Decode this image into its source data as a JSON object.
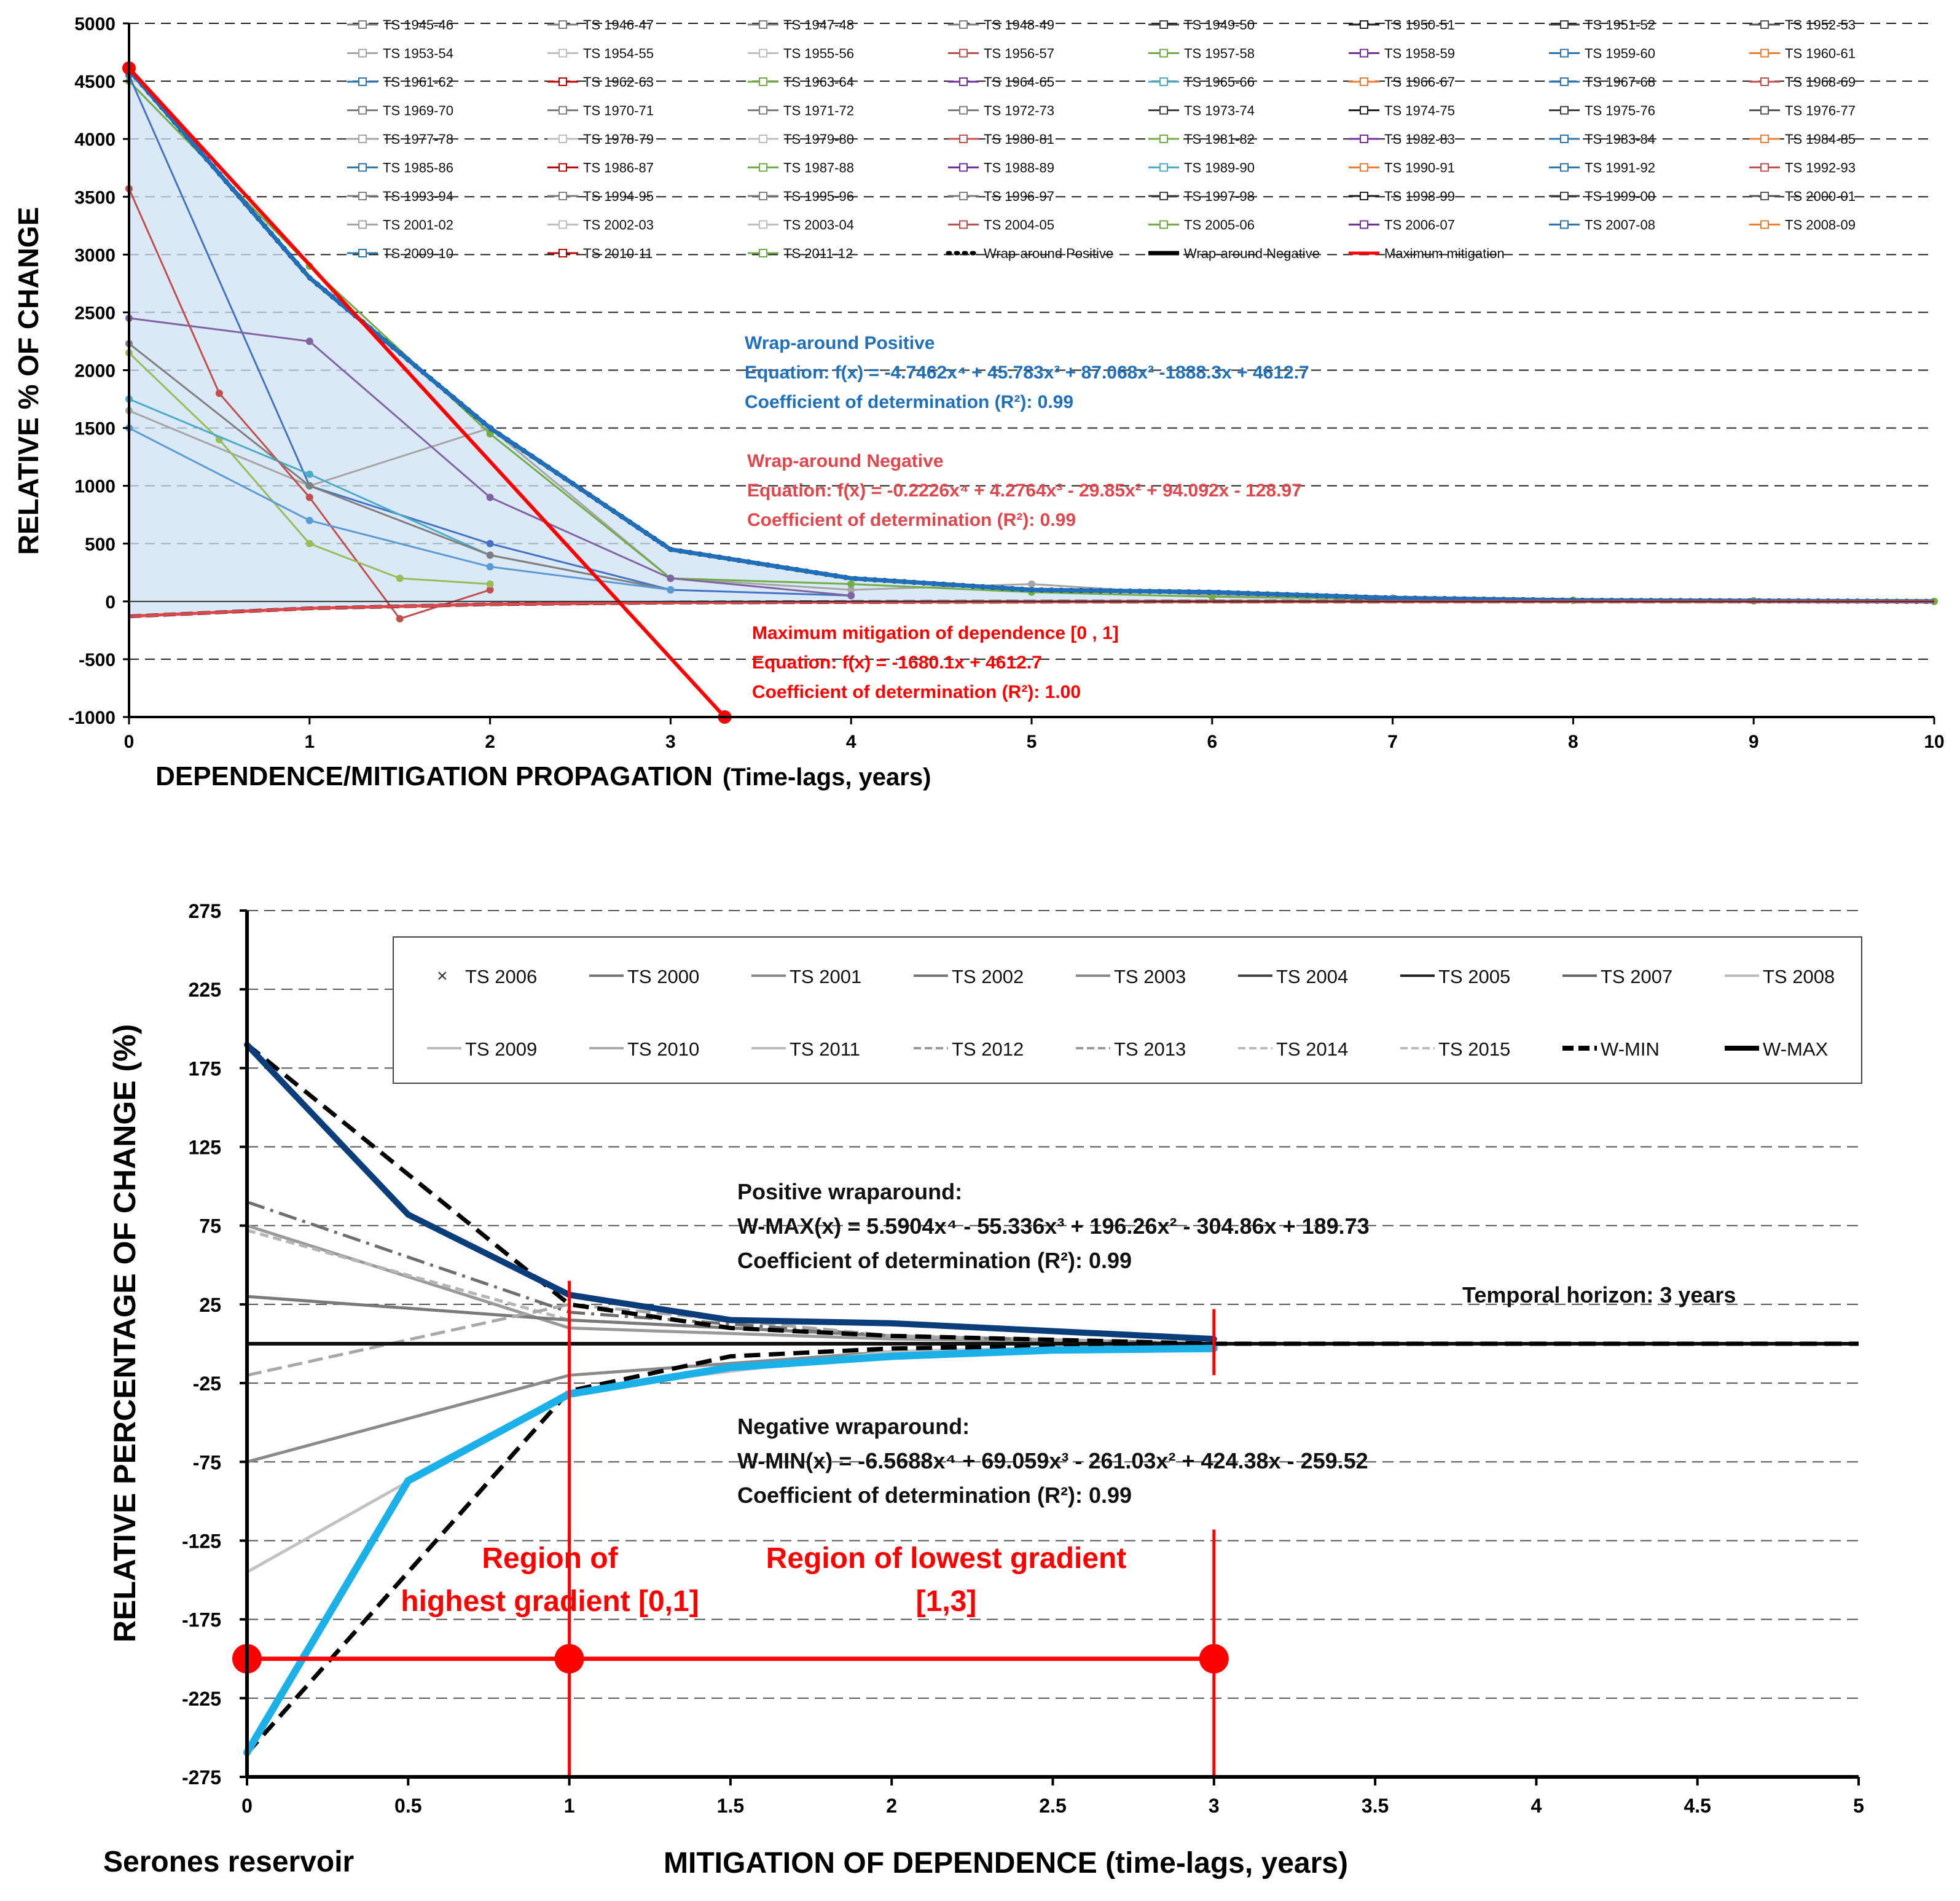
{
  "colors": {
    "wrap_pos_top": "#1f6fba",
    "wrap_neg_top": "#e0474c",
    "mitigation": "#ff0000",
    "fill_area": "#cfe0f1",
    "w_max_curve": "#0b3d7a",
    "w_min_curve": "#1cb0e8",
    "annot_red": "#ff0000",
    "gray_dark": "#555555",
    "gray_mid": "#8a8a8a",
    "gray_light": "#b8b8b8"
  },
  "top_chart": {
    "legend": [
      "TS 1945-46",
      "TS 1946-47",
      "TS 1947-48",
      "TS 1948-49",
      "TS 1949-50",
      "TS 1950-51",
      "TS 1951-52",
      "TS 1952-53",
      "TS 1953-54",
      "TS 1954-55",
      "TS 1955-56",
      "TS 1956-57",
      "TS 1957-58",
      "TS 1958-59",
      "TS 1959-60",
      "TS 1960-61",
      "TS 1961-62",
      "TS 1962-63",
      "TS 1963-64",
      "TS 1964-65",
      "TS 1965-66",
      "TS 1966-67",
      "TS 1967-68",
      "TS 1968-69",
      "TS 1969-70",
      "TS 1970-71",
      "TS 1971-72",
      "TS 1972-73",
      "TS 1973-74",
      "TS 1974-75",
      "TS 1975-76",
      "TS 1976-77",
      "TS 1977-78",
      "TS 1978-79",
      "TS 1979-80",
      "TS 1980-81",
      "TS 1981-82",
      "TS 1982-83",
      "TS 1983-84",
      "TS 1984-85",
      "TS 1985-86",
      "TS 1986-87",
      "TS 1987-88",
      "TS 1988-89",
      "TS 1989-90",
      "TS 1990-91",
      "TS 1991-92",
      "TS 1992-93",
      "TS 1993-94",
      "TS 1994-95",
      "TS 1995-96",
      "TS 1996-97",
      "TS 1997-98",
      "TS 1998-99",
      "TS 1999-00",
      "TS 2000-01",
      "TS 2001-02",
      "TS 2002-03",
      "TS 2003-04",
      "TS 2004-05",
      "TS 2005-06",
      "TS 2006-07",
      "TS 2007-08",
      "TS 2008-09",
      "TS 2009-10",
      "TS 2010-11",
      "TS 2011-12",
      "Wrap-around Positive",
      "Wrap-around Negative",
      "Maximum mitigation"
    ],
    "annotations": {
      "pos_title": "Wrap-around Positive",
      "pos_eq": "Equation: f(x) = -4.7462x⁴ +  45.783x³ + 87.068x² -1888.3x + 4612.7",
      "pos_r2": "Coefficient of determination (R²): 0.99",
      "neg_title": "Wrap-around Negative",
      "neg_eq": "Equation: f(x) = -0.2226x⁴ + 4.2764x³ - 29.85x² + 94.092x - 128.97",
      "neg_r2": "Coefficient of determination (R²): 0.99",
      "mit_title": "Maximum mitigation of dependence [0 , 1]",
      "mit_eq": "Equation: f(x) = -1680.1x + 4612.7",
      "mit_r2": "Coefficient of determination (R²): 1.00"
    }
  },
  "bottom_chart": {
    "legend": [
      "TS 2006",
      "TS 2000",
      "TS 2001",
      "TS 2002",
      "TS 2003",
      "TS 2004",
      "TS 2005",
      "TS 2007",
      "TS 2008",
      "TS 2009",
      "TS 2010",
      "TS 2011",
      "TS 2012",
      "TS 2013",
      "TS 2014",
      "TS 2015",
      "W-MIN",
      "W-MAX"
    ],
    "annotations": {
      "pos_title": "Positive wraparound:",
      "pos_eq": "W-MAX(x) = 5.5904x⁴ - 55.336x³ + 196.26x² - 304.86x + 189.73",
      "pos_r2": "Coefficient of determination (R²): 0.99",
      "neg_title": "Negative wraparound:",
      "neg_eq": "W-MIN(x) = -6.5688x⁴ + 69.059x³ - 261.03x² + 424.38x - 259.52",
      "neg_r2": "Coefficient of determination (R²): 0.99",
      "horizon": "Temporal horizon: 3 years",
      "region1_line1": "Region of",
      "region1_line2": "highest gradient [0,1]",
      "region2_line1": "Region of lowest gradient",
      "region2_line2": "[1,3]",
      "reservoir": "Serones reservoir"
    }
  },
  "chart_data": [
    {
      "type": "line",
      "title": "",
      "xlabel": "DEPENDENCE/MITIGATION PROPAGATION",
      "xlabel_suffix": "(Time-lags, years)",
      "ylabel": "RELATIVE % OF CHANGE",
      "xlim": [
        0,
        10
      ],
      "ylim": [
        -1000,
        5000
      ],
      "xticks": [
        "0",
        "1",
        "2",
        "3",
        "4",
        "5",
        "6",
        "7",
        "8",
        "9",
        "10"
      ],
      "yticks": [
        "5000",
        "4500",
        "4000",
        "3500",
        "3000",
        "2500",
        "2000",
        "1500",
        "1000",
        "500",
        "0",
        "-500",
        "-1000"
      ],
      "series": [
        {
          "name": "Wrap-around Positive",
          "x": [
            0,
            1,
            2,
            3,
            4,
            5,
            6,
            7,
            8,
            9,
            10
          ],
          "values": [
            4600,
            2800,
            1500,
            450,
            200,
            100,
            80,
            30,
            10,
            5,
            0
          ]
        },
        {
          "name": "Wrap-around Negative",
          "x": [
            0,
            1,
            2,
            3,
            4,
            5,
            6,
            7,
            8,
            9,
            10
          ],
          "values": [
            -129,
            -60,
            -25,
            -10,
            -5,
            -2,
            -1,
            0,
            0,
            0,
            0
          ]
        },
        {
          "name": "Maximum mitigation",
          "x": [
            0,
            3.3
          ],
          "values": [
            4612.7,
            -1000
          ]
        },
        {
          "name": "TS 1945-46",
          "x": [
            0,
            1,
            2,
            3,
            4,
            5,
            6,
            7,
            8,
            9,
            10
          ],
          "values": [
            1650,
            1000,
            1500,
            200,
            100,
            150,
            50,
            30,
            10,
            5,
            0
          ]
        },
        {
          "name": "TS 1946-47",
          "x": [
            0,
            1,
            2,
            3,
            4,
            5,
            6,
            7,
            8,
            9,
            10
          ],
          "values": [
            4500,
            2900,
            1450,
            200,
            150,
            80,
            40,
            20,
            10,
            5,
            0
          ]
        },
        {
          "name": "TS 1947-48",
          "x": [
            0,
            1,
            2,
            3,
            4
          ],
          "values": [
            4550,
            1000,
            500,
            100,
            50
          ]
        },
        {
          "name": "TS 1956-57",
          "x": [
            0,
            1,
            2,
            3,
            4
          ],
          "values": [
            2450,
            2250,
            900,
            200,
            50
          ]
        },
        {
          "name": "TS 1975-76",
          "x": [
            0,
            0.5,
            1,
            1.5,
            2
          ],
          "values": [
            3570,
            1800,
            900,
            -150,
            100
          ]
        },
        {
          "name": "TS 1966-67",
          "x": [
            0,
            0.5,
            1,
            1.5,
            2
          ],
          "values": [
            2150,
            1400,
            500,
            200,
            150
          ]
        },
        {
          "name": "TS 1964-65",
          "x": [
            0,
            1,
            2,
            3
          ],
          "values": [
            1750,
            1100,
            400,
            100
          ]
        },
        {
          "name": "TS 1969-70",
          "x": [
            0,
            1,
            2,
            3
          ],
          "values": [
            2230,
            1000,
            400,
            100
          ]
        },
        {
          "name": "TS 1959-60",
          "x": [
            0,
            1,
            2,
            3
          ],
          "values": [
            1500,
            700,
            300,
            100
          ]
        }
      ]
    },
    {
      "type": "line",
      "title": "",
      "xlabel": "MITIGATION OF DEPENDENCE (time-lags, years)",
      "ylabel": "RELATIVE PERCENTAGE OF CHANGE (%)",
      "xlim": [
        0,
        5
      ],
      "ylim": [
        -275,
        275
      ],
      "xticks": [
        "0",
        "0.5",
        "1",
        "1.5",
        "2",
        "2.5",
        "3",
        "3.5",
        "4",
        "4.5",
        "5"
      ],
      "yticks": [
        "275",
        "225",
        "175",
        "125",
        "75",
        "25",
        "-25",
        "-75",
        "-125",
        "-175",
        "-225",
        "-275"
      ],
      "series": [
        {
          "name": "W-MAX (fit)",
          "x": [
            0,
            0.5,
            1,
            1.5,
            2,
            2.5,
            3
          ],
          "values": [
            189.73,
            82,
            31,
            15,
            13,
            8,
            3
          ]
        },
        {
          "name": "W-MIN (fit)",
          "x": [
            0,
            0.5,
            1,
            1.5,
            2,
            2.5,
            3
          ],
          "values": [
            -259.52,
            -87,
            -32,
            -15,
            -8,
            -4,
            -3
          ]
        },
        {
          "name": "W-MAX",
          "x": [
            0,
            1,
            1.5,
            2,
            3,
            5
          ],
          "values": [
            190,
            25,
            10,
            5,
            0,
            0
          ]
        },
        {
          "name": "W-MIN",
          "x": [
            0,
            1,
            1.5,
            2,
            3,
            5
          ],
          "values": [
            -260,
            -30,
            -8,
            -3,
            0,
            0
          ]
        },
        {
          "name": "TS 2012",
          "x": [
            0,
            1,
            2,
            3
          ],
          "values": [
            90,
            20,
            5,
            0
          ]
        },
        {
          "name": "TS 2013",
          "x": [
            0,
            1,
            2,
            3
          ],
          "values": [
            75,
            10,
            3,
            0
          ]
        },
        {
          "name": "TS 2008",
          "x": [
            0,
            1,
            2,
            3
          ],
          "values": [
            72,
            15,
            5,
            0
          ]
        },
        {
          "name": "TS 2001",
          "x": [
            0,
            1,
            2,
            3
          ],
          "values": [
            -75,
            -20,
            -5,
            0
          ]
        },
        {
          "name": "TS 2002",
          "x": [
            0,
            1,
            2,
            3
          ],
          "values": [
            -145,
            -30,
            -5,
            0
          ]
        },
        {
          "name": "TS 2003",
          "x": [
            0,
            1,
            2,
            3
          ],
          "values": [
            30,
            15,
            5,
            0
          ]
        },
        {
          "name": "TS 2009",
          "x": [
            0,
            1,
            2,
            3
          ],
          "values": [
            -20,
            25,
            5,
            0
          ]
        },
        {
          "name": "TS 2005",
          "x": [
            0,
            1,
            2,
            3,
            4,
            5
          ],
          "values": [
            0,
            0,
            0,
            0,
            0,
            0
          ]
        }
      ]
    }
  ]
}
